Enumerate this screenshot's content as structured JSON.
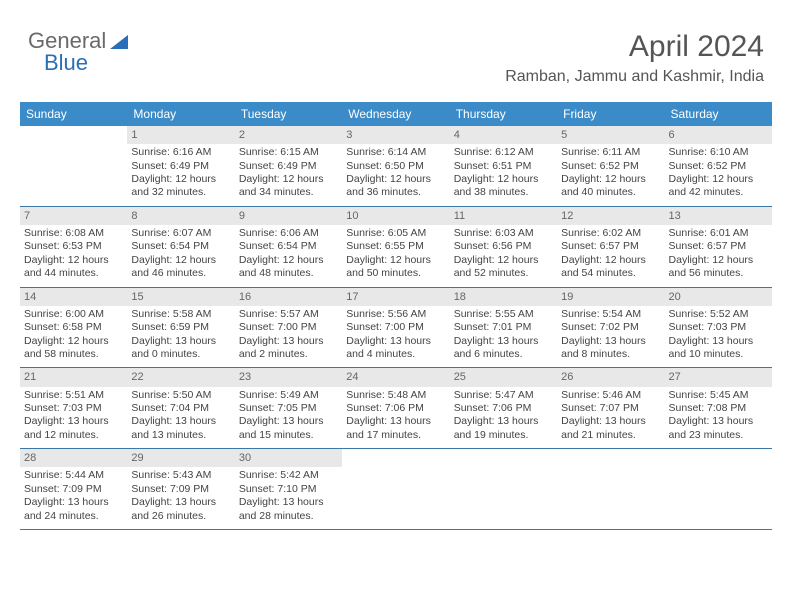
{
  "logo": {
    "part1": "General",
    "part2": "Blue"
  },
  "title": "April 2024",
  "location": "Ramban, Jammu and Kashmir, India",
  "colors": {
    "header_bg": "#3b8bc8",
    "row_border": "#3b78a8",
    "daynum_bg": "#e8e8e8",
    "text": "#444444",
    "logo_gray": "#6a6a6a",
    "logo_blue": "#2a6fb5"
  },
  "weekdays": [
    "Sunday",
    "Monday",
    "Tuesday",
    "Wednesday",
    "Thursday",
    "Friday",
    "Saturday"
  ],
  "weeks": [
    [
      {
        "blank": true
      },
      {
        "n": "1",
        "sr": "Sunrise: 6:16 AM",
        "ss": "Sunset: 6:49 PM",
        "d1": "Daylight: 12 hours",
        "d2": "and 32 minutes."
      },
      {
        "n": "2",
        "sr": "Sunrise: 6:15 AM",
        "ss": "Sunset: 6:49 PM",
        "d1": "Daylight: 12 hours",
        "d2": "and 34 minutes."
      },
      {
        "n": "3",
        "sr": "Sunrise: 6:14 AM",
        "ss": "Sunset: 6:50 PM",
        "d1": "Daylight: 12 hours",
        "d2": "and 36 minutes."
      },
      {
        "n": "4",
        "sr": "Sunrise: 6:12 AM",
        "ss": "Sunset: 6:51 PM",
        "d1": "Daylight: 12 hours",
        "d2": "and 38 minutes."
      },
      {
        "n": "5",
        "sr": "Sunrise: 6:11 AM",
        "ss": "Sunset: 6:52 PM",
        "d1": "Daylight: 12 hours",
        "d2": "and 40 minutes."
      },
      {
        "n": "6",
        "sr": "Sunrise: 6:10 AM",
        "ss": "Sunset: 6:52 PM",
        "d1": "Daylight: 12 hours",
        "d2": "and 42 minutes."
      }
    ],
    [
      {
        "n": "7",
        "sr": "Sunrise: 6:08 AM",
        "ss": "Sunset: 6:53 PM",
        "d1": "Daylight: 12 hours",
        "d2": "and 44 minutes."
      },
      {
        "n": "8",
        "sr": "Sunrise: 6:07 AM",
        "ss": "Sunset: 6:54 PM",
        "d1": "Daylight: 12 hours",
        "d2": "and 46 minutes."
      },
      {
        "n": "9",
        "sr": "Sunrise: 6:06 AM",
        "ss": "Sunset: 6:54 PM",
        "d1": "Daylight: 12 hours",
        "d2": "and 48 minutes."
      },
      {
        "n": "10",
        "sr": "Sunrise: 6:05 AM",
        "ss": "Sunset: 6:55 PM",
        "d1": "Daylight: 12 hours",
        "d2": "and 50 minutes."
      },
      {
        "n": "11",
        "sr": "Sunrise: 6:03 AM",
        "ss": "Sunset: 6:56 PM",
        "d1": "Daylight: 12 hours",
        "d2": "and 52 minutes."
      },
      {
        "n": "12",
        "sr": "Sunrise: 6:02 AM",
        "ss": "Sunset: 6:57 PM",
        "d1": "Daylight: 12 hours",
        "d2": "and 54 minutes."
      },
      {
        "n": "13",
        "sr": "Sunrise: 6:01 AM",
        "ss": "Sunset: 6:57 PM",
        "d1": "Daylight: 12 hours",
        "d2": "and 56 minutes."
      }
    ],
    [
      {
        "n": "14",
        "sr": "Sunrise: 6:00 AM",
        "ss": "Sunset: 6:58 PM",
        "d1": "Daylight: 12 hours",
        "d2": "and 58 minutes."
      },
      {
        "n": "15",
        "sr": "Sunrise: 5:58 AM",
        "ss": "Sunset: 6:59 PM",
        "d1": "Daylight: 13 hours",
        "d2": "and 0 minutes."
      },
      {
        "n": "16",
        "sr": "Sunrise: 5:57 AM",
        "ss": "Sunset: 7:00 PM",
        "d1": "Daylight: 13 hours",
        "d2": "and 2 minutes."
      },
      {
        "n": "17",
        "sr": "Sunrise: 5:56 AM",
        "ss": "Sunset: 7:00 PM",
        "d1": "Daylight: 13 hours",
        "d2": "and 4 minutes."
      },
      {
        "n": "18",
        "sr": "Sunrise: 5:55 AM",
        "ss": "Sunset: 7:01 PM",
        "d1": "Daylight: 13 hours",
        "d2": "and 6 minutes."
      },
      {
        "n": "19",
        "sr": "Sunrise: 5:54 AM",
        "ss": "Sunset: 7:02 PM",
        "d1": "Daylight: 13 hours",
        "d2": "and 8 minutes."
      },
      {
        "n": "20",
        "sr": "Sunrise: 5:52 AM",
        "ss": "Sunset: 7:03 PM",
        "d1": "Daylight: 13 hours",
        "d2": "and 10 minutes."
      }
    ],
    [
      {
        "n": "21",
        "sr": "Sunrise: 5:51 AM",
        "ss": "Sunset: 7:03 PM",
        "d1": "Daylight: 13 hours",
        "d2": "and 12 minutes."
      },
      {
        "n": "22",
        "sr": "Sunrise: 5:50 AM",
        "ss": "Sunset: 7:04 PM",
        "d1": "Daylight: 13 hours",
        "d2": "and 13 minutes."
      },
      {
        "n": "23",
        "sr": "Sunrise: 5:49 AM",
        "ss": "Sunset: 7:05 PM",
        "d1": "Daylight: 13 hours",
        "d2": "and 15 minutes."
      },
      {
        "n": "24",
        "sr": "Sunrise: 5:48 AM",
        "ss": "Sunset: 7:06 PM",
        "d1": "Daylight: 13 hours",
        "d2": "and 17 minutes."
      },
      {
        "n": "25",
        "sr": "Sunrise: 5:47 AM",
        "ss": "Sunset: 7:06 PM",
        "d1": "Daylight: 13 hours",
        "d2": "and 19 minutes."
      },
      {
        "n": "26",
        "sr": "Sunrise: 5:46 AM",
        "ss": "Sunset: 7:07 PM",
        "d1": "Daylight: 13 hours",
        "d2": "and 21 minutes."
      },
      {
        "n": "27",
        "sr": "Sunrise: 5:45 AM",
        "ss": "Sunset: 7:08 PM",
        "d1": "Daylight: 13 hours",
        "d2": "and 23 minutes."
      }
    ],
    [
      {
        "n": "28",
        "sr": "Sunrise: 5:44 AM",
        "ss": "Sunset: 7:09 PM",
        "d1": "Daylight: 13 hours",
        "d2": "and 24 minutes."
      },
      {
        "n": "29",
        "sr": "Sunrise: 5:43 AM",
        "ss": "Sunset: 7:09 PM",
        "d1": "Daylight: 13 hours",
        "d2": "and 26 minutes."
      },
      {
        "n": "30",
        "sr": "Sunrise: 5:42 AM",
        "ss": "Sunset: 7:10 PM",
        "d1": "Daylight: 13 hours",
        "d2": "and 28 minutes."
      },
      {
        "blank": true
      },
      {
        "blank": true
      },
      {
        "blank": true
      },
      {
        "blank": true
      }
    ]
  ]
}
